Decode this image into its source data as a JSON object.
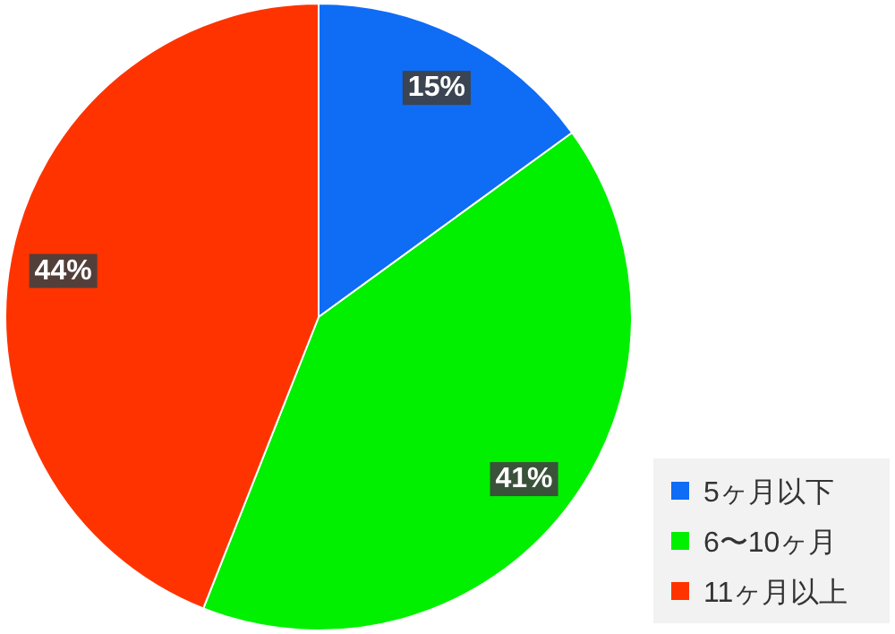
{
  "chart_data": {
    "type": "pie",
    "categories": [
      "5ヶ月以下",
      "6〜10ヶ月",
      "11ヶ月以上"
    ],
    "values": [
      15,
      41,
      44
    ],
    "colors": [
      "#0f6cf5",
      "#00f000",
      "#ff3300"
    ],
    "value_labels": [
      "15%",
      "41%",
      "44%"
    ],
    "legend": "bottom right"
  }
}
